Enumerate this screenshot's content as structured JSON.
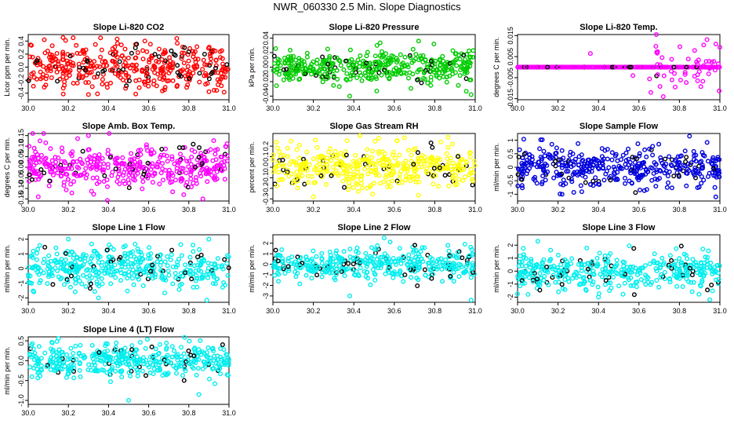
{
  "figure": {
    "title": "NWR_060330  2.5 Min. Slope Diagnostics"
  },
  "chart_data": [
    {
      "type": "scatter",
      "title": "Slope Li-820 CO2",
      "ylabel": "Licor ppm per min.",
      "color": "#ff0000",
      "xlim": [
        30.0,
        31.0
      ],
      "ylim": [
        -0.5,
        0.5
      ],
      "xticks": [
        "30.0",
        "30.2",
        "30.4",
        "30.6",
        "30.8",
        "31.0"
      ],
      "xtick_values": [
        30.0,
        30.2,
        30.4,
        30.6,
        30.8,
        31.0
      ],
      "yticks": [
        "-0.4",
        "-0.2",
        "0.0",
        "0.2",
        "0.4"
      ],
      "ytick_values": [
        -0.4,
        -0.2,
        0.0,
        0.2,
        0.4
      ],
      "spread": 0.17,
      "outliers": [
        [
          30.08,
          0.42
        ],
        [
          30.36,
          0.45
        ],
        [
          30.3,
          -0.42
        ],
        [
          30.74,
          0.44
        ]
      ]
    },
    {
      "type": "scatter",
      "title": "Slope Li-820 Pressure",
      "ylabel": "kPa per min.",
      "color": "#00cc00",
      "xlim": [
        30.0,
        31.0
      ],
      "ylim": [
        -0.045,
        0.045
      ],
      "xticks": [
        "30.0",
        "30.2",
        "30.4",
        "30.6",
        "30.8",
        "31.0"
      ],
      "xtick_values": [
        30.0,
        30.2,
        30.4,
        30.6,
        30.8,
        31.0
      ],
      "yticks": [
        "-0.04",
        "-0.02",
        "0.00",
        "0.02",
        "0.04"
      ],
      "ytick_values": [
        -0.04,
        -0.02,
        0.0,
        0.02,
        0.04
      ],
      "spread": 0.012,
      "outliers": [
        [
          30.38,
          -0.04
        ],
        [
          30.98,
          -0.038
        ],
        [
          30.72,
          0.036
        ]
      ]
    },
    {
      "type": "scatter",
      "title": "Slope Li-820 Temp.",
      "ylabel": "degrees C per min.",
      "color": "#ff00ff",
      "xlim": [
        30.0,
        31.0
      ],
      "ylim": [
        -0.0155,
        0.0155
      ],
      "xticks": [
        "30.0",
        "30.2",
        "30.4",
        "30.6",
        "30.8",
        "31.0"
      ],
      "xtick_values": [
        30.0,
        30.2,
        30.4,
        30.6,
        30.8,
        31.0
      ],
      "yticks": [
        "-0.015",
        "-0.005",
        "0.005",
        "0.015"
      ],
      "ytick_values": [
        -0.015,
        -0.005,
        0.005,
        0.015
      ],
      "spread": 0.0,
      "flat": true,
      "burst_range": [
        30.65,
        31.0
      ],
      "burst_spread": 0.007,
      "outliers": [
        [
          30.36,
          0.0065
        ],
        [
          30.57,
          -0.004
        ],
        [
          30.72,
          -0.014
        ],
        [
          30.98,
          0.011
        ]
      ]
    },
    {
      "type": "scatter",
      "title": "Slope Amb. Box Temp.",
      "ylabel": "degrees C per min.",
      "color": "#ff00ff",
      "xlim": [
        30.0,
        31.0
      ],
      "ylim": [
        -0.16,
        0.16
      ],
      "xticks": [
        "30.0",
        "30.2",
        "30.4",
        "30.6",
        "30.8",
        "31.0"
      ],
      "xtick_values": [
        30.0,
        30.2,
        30.4,
        30.6,
        30.8,
        31.0
      ],
      "yticks": [
        "-0.15",
        "-0.10",
        "-0.05",
        "0.00",
        "0.05",
        "0.10",
        "0.15"
      ],
      "ytick_values": [
        -0.15,
        -0.1,
        -0.05,
        0.0,
        0.05,
        0.1,
        0.15
      ],
      "spread": 0.05,
      "outliers": [
        [
          30.3,
          0.15
        ],
        [
          30.05,
          -0.14
        ],
        [
          30.87,
          -0.15
        ]
      ]
    },
    {
      "type": "scatter",
      "title": "Slope Gas Stream RH",
      "ylabel": "percent per min.",
      "color": "#ffff00",
      "xlim": [
        30.0,
        31.0
      ],
      "ylim": [
        -0.32,
        0.32
      ],
      "xticks": [
        "30.0",
        "30.2",
        "30.4",
        "30.6",
        "30.8",
        "31.0"
      ],
      "xtick_values": [
        30.0,
        30.2,
        30.4,
        30.6,
        30.8,
        31.0
      ],
      "yticks": [
        "-0.3",
        "-0.2",
        "-0.1",
        "0.0",
        "0.1",
        "0.2"
      ],
      "ytick_values": [
        -0.3,
        -0.2,
        -0.1,
        0.0,
        0.1,
        0.2
      ],
      "spread": 0.1,
      "outliers": [
        [
          30.43,
          0.3
        ],
        [
          30.65,
          0.28
        ],
        [
          30.2,
          -0.28
        ]
      ]
    },
    {
      "type": "scatter",
      "title": "Slope Sample Flow",
      "ylabel": "ml/min per min.",
      "color": "#0000dd",
      "xlim": [
        30.0,
        31.0
      ],
      "ylim": [
        -1.25,
        1.25
      ],
      "xticks": [
        "30.0",
        "30.2",
        "30.4",
        "30.6",
        "30.8",
        "31.0"
      ],
      "xtick_values": [
        30.0,
        30.2,
        30.4,
        30.6,
        30.8,
        31.0
      ],
      "yticks": [
        "-1",
        "-0.5",
        "0",
        "0.5",
        "1"
      ],
      "ytick_values": [
        -1.0,
        -0.5,
        0.0,
        0.5,
        1.0
      ],
      "spread": 0.35,
      "outliers": [
        [
          30.85,
          1.15
        ],
        [
          30.98,
          -1.1
        ],
        [
          30.22,
          -1.0
        ]
      ]
    },
    {
      "type": "scatter",
      "title": "Slope Line 1 Flow",
      "ylabel": "ml/min per min.",
      "color": "#00eeee",
      "xlim": [
        30.0,
        31.0
      ],
      "ylim": [
        -2.3,
        2.3
      ],
      "xticks": [
        "30.0",
        "30.2",
        "30.4",
        "30.6",
        "30.8",
        "31.0"
      ],
      "xtick_values": [
        30.0,
        30.2,
        30.4,
        30.6,
        30.8,
        31.0
      ],
      "yticks": [
        "-2",
        "-1",
        "0",
        "1",
        "2"
      ],
      "ytick_values": [
        -2.0,
        -1.0,
        0.0,
        1.0,
        2.0
      ],
      "spread": 0.7,
      "outliers": [
        [
          30.2,
          2.0
        ],
        [
          30.9,
          2.0
        ],
        [
          30.35,
          -2.0
        ]
      ]
    },
    {
      "type": "scatter",
      "title": "Slope Line 2 Flow",
      "ylabel": "ml/min per min.",
      "color": "#00eeee",
      "xlim": [
        30.0,
        31.0
      ],
      "ylim": [
        -3.6,
        2.8
      ],
      "xticks": [
        "30.0",
        "30.2",
        "30.4",
        "30.6",
        "30.8",
        "31.0"
      ],
      "xtick_values": [
        30.0,
        30.2,
        30.4,
        30.6,
        30.8,
        31.0
      ],
      "yticks": [
        "-3",
        "-2",
        "-1",
        "0",
        "1",
        "2"
      ],
      "ytick_values": [
        -3.0,
        -2.0,
        -1.0,
        0.0,
        1.0,
        2.0
      ],
      "spread": 0.7,
      "outliers": [
        [
          30.38,
          -3.0
        ],
        [
          30.98,
          -3.4
        ],
        [
          30.55,
          2.5
        ]
      ]
    },
    {
      "type": "scatter",
      "title": "Slope Line 3 Flow",
      "ylabel": "ml/min per min.",
      "color": "#00eeee",
      "xlim": [
        30.0,
        31.0
      ],
      "ylim": [
        -2.4,
        2.8
      ],
      "xticks": [
        "30.0",
        "30.2",
        "30.4",
        "30.6",
        "30.8",
        "31.0"
      ],
      "xtick_values": [
        30.0,
        30.2,
        30.4,
        30.6,
        30.8,
        31.0
      ],
      "yticks": [
        "-2",
        "-1",
        "0",
        "1",
        "2"
      ],
      "ytick_values": [
        -2.0,
        -1.0,
        0.0,
        1.0,
        2.0
      ],
      "spread": 0.7,
      "outliers": [
        [
          30.1,
          2.3
        ],
        [
          30.95,
          -2.2
        ],
        [
          30.4,
          -2.0
        ]
      ]
    },
    {
      "type": "scatter",
      "title": "Slope Line 4 (LT) Flow",
      "ylabel": "ml/min per min.",
      "color": "#00eeee",
      "xlim": [
        30.0,
        31.0
      ],
      "ylim": [
        -1.1,
        0.6
      ],
      "xticks": [
        "30.0",
        "30.2",
        "30.4",
        "30.6",
        "30.8",
        "31.0"
      ],
      "xtick_values": [
        30.0,
        30.2,
        30.4,
        30.6,
        30.8,
        31.0
      ],
      "yticks": [
        "-1.0",
        "-0.5",
        "0.0",
        "0.5"
      ],
      "ytick_values": [
        -1.0,
        -0.5,
        0.0,
        0.5
      ],
      "spread": 0.2,
      "outliers": [
        [
          30.5,
          -1.0
        ],
        [
          30.85,
          -0.85
        ],
        [
          30.12,
          0.45
        ]
      ]
    }
  ]
}
